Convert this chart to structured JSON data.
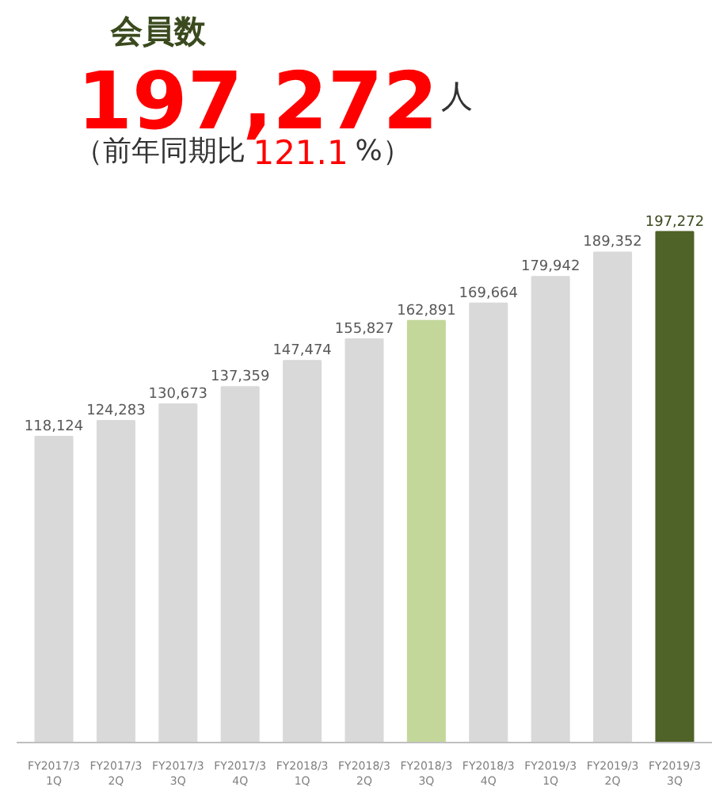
{
  "chart_data": {
    "type": "bar",
    "title": "会員数",
    "annotations": [
      "197,272",
      "人",
      "（前年同期比",
      "121.1",
      "%）"
    ],
    "categories": [
      "FY2017/3\n1Q",
      "FY2017/3\n2Q",
      "FY2017/3\n3Q",
      "FY2017/3\n4Q",
      "FY2018/3\n1Q",
      "FY2018/3\n2Q",
      "FY2018/3\n3Q",
      "FY2018/3\n4Q",
      "FY2019/3\n1Q",
      "FY2019/3\n2Q",
      "FY2019/3\n3Q"
    ],
    "values": [
      118124,
      124283,
      130673,
      137359,
      147474,
      155827,
      162891,
      169664,
      179942,
      189352,
      197272
    ],
    "colors": [
      "#d9d9d9",
      "#d9d9d9",
      "#d9d9d9",
      "#d9d9d9",
      "#d9d9d9",
      "#d9d9d9",
      "#c4d79b",
      "#d9d9d9",
      "#d9d9d9",
      "#d9d9d9",
      "#4f6228"
    ],
    "value_labels": [
      "118,124",
      "124,283",
      "130,673",
      "137,359",
      "147,474",
      "155,827",
      "162,891",
      "169,664",
      "179,942",
      "189,352",
      "197,272"
    ],
    "grid": false
  }
}
